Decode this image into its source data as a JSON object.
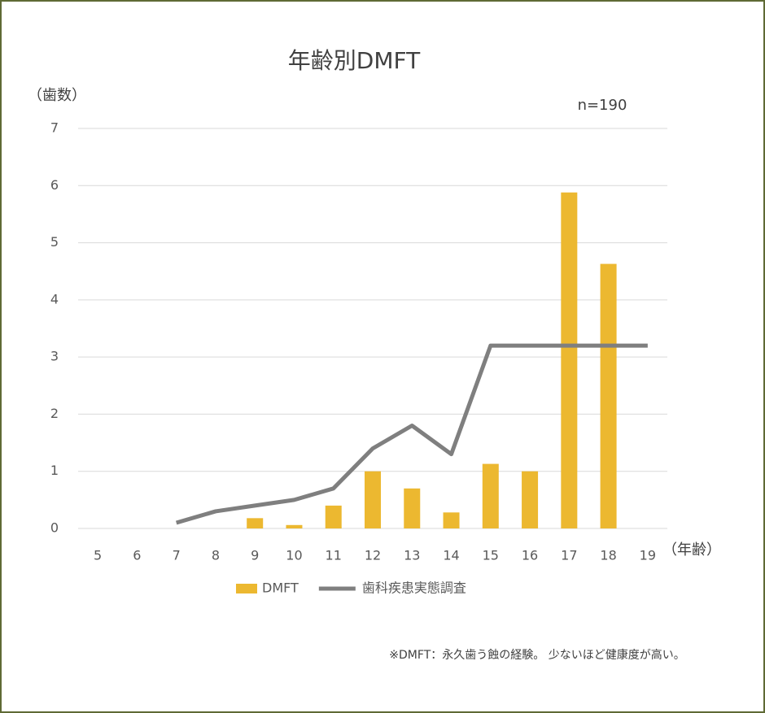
{
  "chart_data": {
    "type": "combo",
    "title": "年齢別DMFT",
    "y_label": "（歯数）",
    "x_label": "（年齢）",
    "annotation": "n=190",
    "note": "※DMFT：永久歯う蝕の経験。 少ないほど健康度が高い。",
    "categories": [
      "5",
      "6",
      "7",
      "8",
      "9",
      "10",
      "11",
      "12",
      "13",
      "14",
      "15",
      "16",
      "17",
      "18",
      "19"
    ],
    "series": [
      {
        "name": "DMFT",
        "type": "bar",
        "color": "#ecb830",
        "values": [
          0,
          0,
          0,
          0,
          0.18,
          0.06,
          0.4,
          1.0,
          0.7,
          0.28,
          1.13,
          1.0,
          5.88,
          4.63,
          null
        ]
      },
      {
        "name": "歯科疾患実態調査",
        "type": "line",
        "color": "#7f7f7f",
        "values": [
          null,
          null,
          0.1,
          0.3,
          0.4,
          0.5,
          0.7,
          1.4,
          1.8,
          1.3,
          3.2,
          3.2,
          3.2,
          3.2,
          3.2
        ]
      }
    ],
    "ylim": [
      0,
      7
    ],
    "yticks": [
      0,
      1,
      2,
      3,
      4,
      5,
      6,
      7
    ],
    "grid": true
  }
}
